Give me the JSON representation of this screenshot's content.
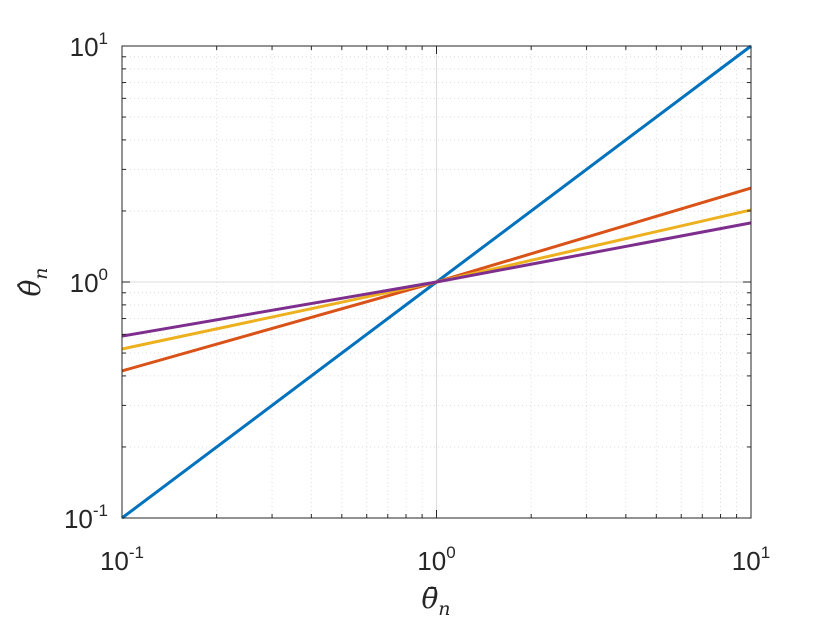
{
  "chart_data": {
    "type": "line",
    "xscale": "log",
    "yscale": "log",
    "xlim": [
      0.1,
      10
    ],
    "ylim": [
      0.1,
      10
    ],
    "grid": true,
    "minor_grid": true,
    "xlabel": "θ̄",
    "xlabel_sub": "n",
    "ylabel": "θ̂",
    "ylabel_sub": "n",
    "x_ticks": [
      {
        "value": 0.1,
        "base": "10",
        "exp": "-1"
      },
      {
        "value": 1,
        "base": "10",
        "exp": "0"
      },
      {
        "value": 10,
        "base": "10",
        "exp": "1"
      }
    ],
    "y_ticks": [
      {
        "value": 0.1,
        "base": "10",
        "exp": "-1"
      },
      {
        "value": 1,
        "base": "10",
        "exp": "0"
      },
      {
        "value": 10,
        "base": "10",
        "exp": "1"
      }
    ],
    "series": [
      {
        "color": "#0072BD",
        "x": [
          0.1,
          1,
          10
        ],
        "y": [
          0.1,
          1,
          10
        ]
      },
      {
        "color": "#D95319",
        "x": [
          0.1,
          1,
          10
        ],
        "y": [
          0.42,
          1,
          2.5
        ]
      },
      {
        "color": "#EDB120",
        "x": [
          0.1,
          1,
          10
        ],
        "y": [
          0.52,
          1,
          2.02
        ]
      },
      {
        "color": "#7E2F8E",
        "x": [
          0.1,
          1,
          10
        ],
        "y": [
          0.59,
          1,
          1.78
        ]
      }
    ]
  }
}
